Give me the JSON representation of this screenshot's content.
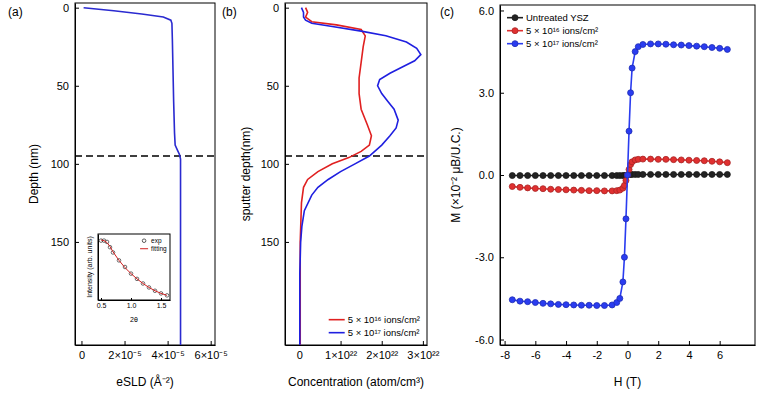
{
  "chart_data": [
    {
      "type": "line",
      "title": "(a)",
      "xlabel": "eSLD (Å⁻²)",
      "ylabel": "Depth (nm)",
      "xlim": [
        -3e-06,
        6.2e-05
      ],
      "xticks": [
        0,
        {
          "value": 2e-05,
          "label": "2×10⁻⁵"
        },
        {
          "value": 4e-05,
          "label": "4×10⁻⁵"
        },
        {
          "value": 6e-05,
          "label": "6×10⁻⁵"
        }
      ],
      "ylim": [
        216,
        -3
      ],
      "yticks": [
        0,
        50,
        100,
        150
      ],
      "reference_line": 95,
      "series": [
        {
          "color": "#2a2ad0",
          "line_style": "solid",
          "x": [
            1e-06,
            1.5e-05,
            2.8e-05,
            3.8e-05,
            4.15e-05,
            4.2e-05,
            4.22e-05,
            4.25e-05,
            4.28e-05,
            4.32e-05,
            4.35e-05,
            4.45e-05,
            4.55e-05,
            4.6e-05,
            4.6e-05,
            4.6e-05,
            4.6e-05
          ],
          "values": [
            0,
            2,
            4,
            6,
            8,
            10,
            20,
            40,
            60,
            80,
            88,
            91,
            94,
            97,
            120,
            160,
            216
          ]
        }
      ]
    },
    {
      "type": "line",
      "title": "(b)",
      "xlabel": "Concentration (atom/cm³)",
      "ylabel": "sputter depth(nm)",
      "xlim": [
        -3.5e+21,
        3.1e+22
      ],
      "xticks": [
        0,
        {
          "value": 1e+22,
          "label": "1×10²²"
        },
        {
          "value": 2e+22,
          "label": "2×10²²"
        },
        {
          "value": 3e+22,
          "label": "3×10²²"
        }
      ],
      "ylim": [
        216,
        -3
      ],
      "yticks": [
        0,
        50,
        100,
        150
      ],
      "reference_line": 95,
      "legend": "lower right",
      "series": [
        {
          "name": "5 × 10¹⁶ ions/cm²",
          "color": "#e02020",
          "line_style": "solid",
          "x": [
            1.5e+21,
            2e+21,
            1.5e+21,
            3e+21,
            9e+21,
            1.5e+22,
            1.6e+22,
            1.55e+22,
            1.5e+22,
            1.45e+22,
            1.45e+22,
            1.5e+22,
            1.65e+22,
            1.75e+22,
            1.7e+22,
            1.5e+22,
            1.2e+22,
            8e+21,
            4.5e+21,
            2e+21,
            1e+21,
            5e+20,
            2e+20,
            2e+20
          ],
          "values": [
            0,
            3,
            6,
            9,
            11,
            14,
            18,
            25,
            35,
            45,
            55,
            65,
            75,
            82,
            88,
            92,
            96,
            100,
            105,
            110,
            115,
            125,
            150,
            216
          ]
        },
        {
          "name": "5 × 10¹⁷ ions/cm²",
          "color": "#1f1fe0",
          "line_style": "solid",
          "x": [
            5e+20,
            1e+21,
            1e+21,
            1.5e+21,
            3e+21,
            8e+21,
            1.5e+22,
            2.1e+22,
            2.6e+22,
            2.85e+22,
            2.95e+22,
            2.8e+22,
            2.5e+22,
            2.2e+22,
            1.95e+22,
            1.9e+22,
            2e+22,
            2.15e+22,
            2.3e+22,
            2.4e+22,
            2.35e+22,
            2.2e+22,
            2e+22,
            1.7e+22,
            1.35e+22,
            1e+22,
            7e+21,
            4.5e+21,
            3e+21,
            1.2e+21,
            6e+20,
            3e+20,
            1e+20,
            1e+20
          ],
          "values": [
            0,
            3,
            6,
            8,
            10,
            12,
            15,
            18,
            22,
            26,
            30,
            34,
            38,
            42,
            46,
            50,
            55,
            60,
            65,
            72,
            77,
            82,
            88,
            95,
            100,
            105,
            110,
            115,
            120,
            130,
            140,
            150,
            170,
            216
          ]
        }
      ]
    },
    {
      "type": "line",
      "title": "(c)",
      "xlabel": "H (T)",
      "ylabel": "M (×10⁻² μB/U.C.)",
      "xlim": [
        -8.3,
        8.3
      ],
      "xticks": [
        -8,
        -6,
        -4,
        -2,
        0,
        2,
        4,
        6
      ],
      "ylim": [
        -6.2,
        6.2
      ],
      "yticks": [
        {
          "value": -6,
          "label": "-6.0"
        },
        {
          "value": -3,
          "label": "-3.0"
        },
        {
          "value": 0,
          "label": "0.0"
        },
        {
          "value": 3,
          "label": "3.0"
        },
        {
          "value": 6,
          "label": "6.0"
        }
      ],
      "legend": "upper left",
      "x": [
        -7.5,
        -7,
        -6.5,
        -6,
        -5.5,
        -5,
        -4.5,
        -4,
        -3.5,
        -3,
        -2.5,
        -2,
        -1.5,
        -1,
        -0.7,
        -0.5,
        -0.3,
        -0.2,
        -0.1,
        0,
        0.1,
        0.2,
        0.3,
        0.5,
        0.7,
        1,
        1.5,
        2,
        2.5,
        3,
        3.5,
        4,
        4.5,
        5,
        5.5,
        6,
        6.5
      ],
      "series": [
        {
          "name": "Untreated YSZ",
          "color": "#222222",
          "marker": "circle",
          "line_style": "solid",
          "values": [
            -0.02,
            -0.02,
            -0.02,
            -0.02,
            -0.02,
            -0.02,
            -0.02,
            -0.02,
            -0.02,
            -0.02,
            -0.02,
            -0.02,
            -0.02,
            -0.02,
            -0.02,
            -0.02,
            -0.02,
            -0.02,
            -0.02,
            0,
            0.02,
            0.02,
            0.02,
            0.02,
            0.02,
            0.02,
            0.02,
            0.02,
            0.02,
            0.02,
            0.02,
            0.02,
            0.02,
            0.02,
            0.02,
            0.02,
            0.02
          ]
        },
        {
          "name": "5 × 10¹⁶ ions/cm²",
          "color": "#e03030",
          "marker": "circle",
          "line_style": "solid",
          "values": [
            -0.42,
            -0.45,
            -0.47,
            -0.49,
            -0.5,
            -0.52,
            -0.53,
            -0.54,
            -0.55,
            -0.56,
            -0.57,
            -0.57,
            -0.58,
            -0.58,
            -0.57,
            -0.55,
            -0.48,
            -0.38,
            -0.2,
            0,
            0.2,
            0.38,
            0.48,
            0.55,
            0.57,
            0.58,
            0.58,
            0.57,
            0.57,
            0.56,
            0.55,
            0.54,
            0.53,
            0.52,
            0.5,
            0.48,
            0.45
          ]
        },
        {
          "name": "5 × 10¹⁷ ions/cm²",
          "color": "#2a3cf0",
          "marker": "circle",
          "line_style": "solid",
          "values": [
            -4.55,
            -4.6,
            -4.62,
            -4.65,
            -4.68,
            -4.7,
            -4.72,
            -4.73,
            -4.74,
            -4.75,
            -4.75,
            -4.76,
            -4.76,
            -4.74,
            -4.65,
            -4.5,
            -3.9,
            -3.0,
            -1.6,
            0,
            1.6,
            3.0,
            3.9,
            4.5,
            4.68,
            4.76,
            4.78,
            4.78,
            4.77,
            4.75,
            4.74,
            4.72,
            4.7,
            4.68,
            4.65,
            4.62,
            4.58
          ]
        }
      ]
    },
    {
      "type": "line",
      "xlabel": "2θ",
      "ylabel": "Intensity (arb. units)",
      "xlim": [
        0.45,
        1.65
      ],
      "xticks": [
        0.5,
        {
          "value": 1.0,
          "label": "1.0"
        },
        1.5
      ],
      "ylim": [
        0,
        1
      ],
      "tick_labels": "x",
      "legend": "upper right",
      "x": [
        0.5,
        0.55,
        0.6,
        0.65,
        0.7,
        0.8,
        0.9,
        1.0,
        1.1,
        1.2,
        1.3,
        1.4,
        1.5,
        1.6
      ],
      "series": [
        {
          "name": "exp",
          "color": "#333333",
          "marker": "hollow_circle",
          "line_style": "none",
          "values": [
            0.9,
            0.9,
            0.88,
            0.8,
            0.72,
            0.6,
            0.5,
            0.4,
            0.32,
            0.25,
            0.19,
            0.14,
            0.1,
            0.07
          ]
        },
        {
          "name": "fitting",
          "color": "#d02020",
          "line_style": "solid",
          "values": [
            0.91,
            0.9,
            0.87,
            0.81,
            0.73,
            0.6,
            0.49,
            0.4,
            0.32,
            0.25,
            0.19,
            0.14,
            0.1,
            0.07
          ]
        }
      ]
    }
  ]
}
